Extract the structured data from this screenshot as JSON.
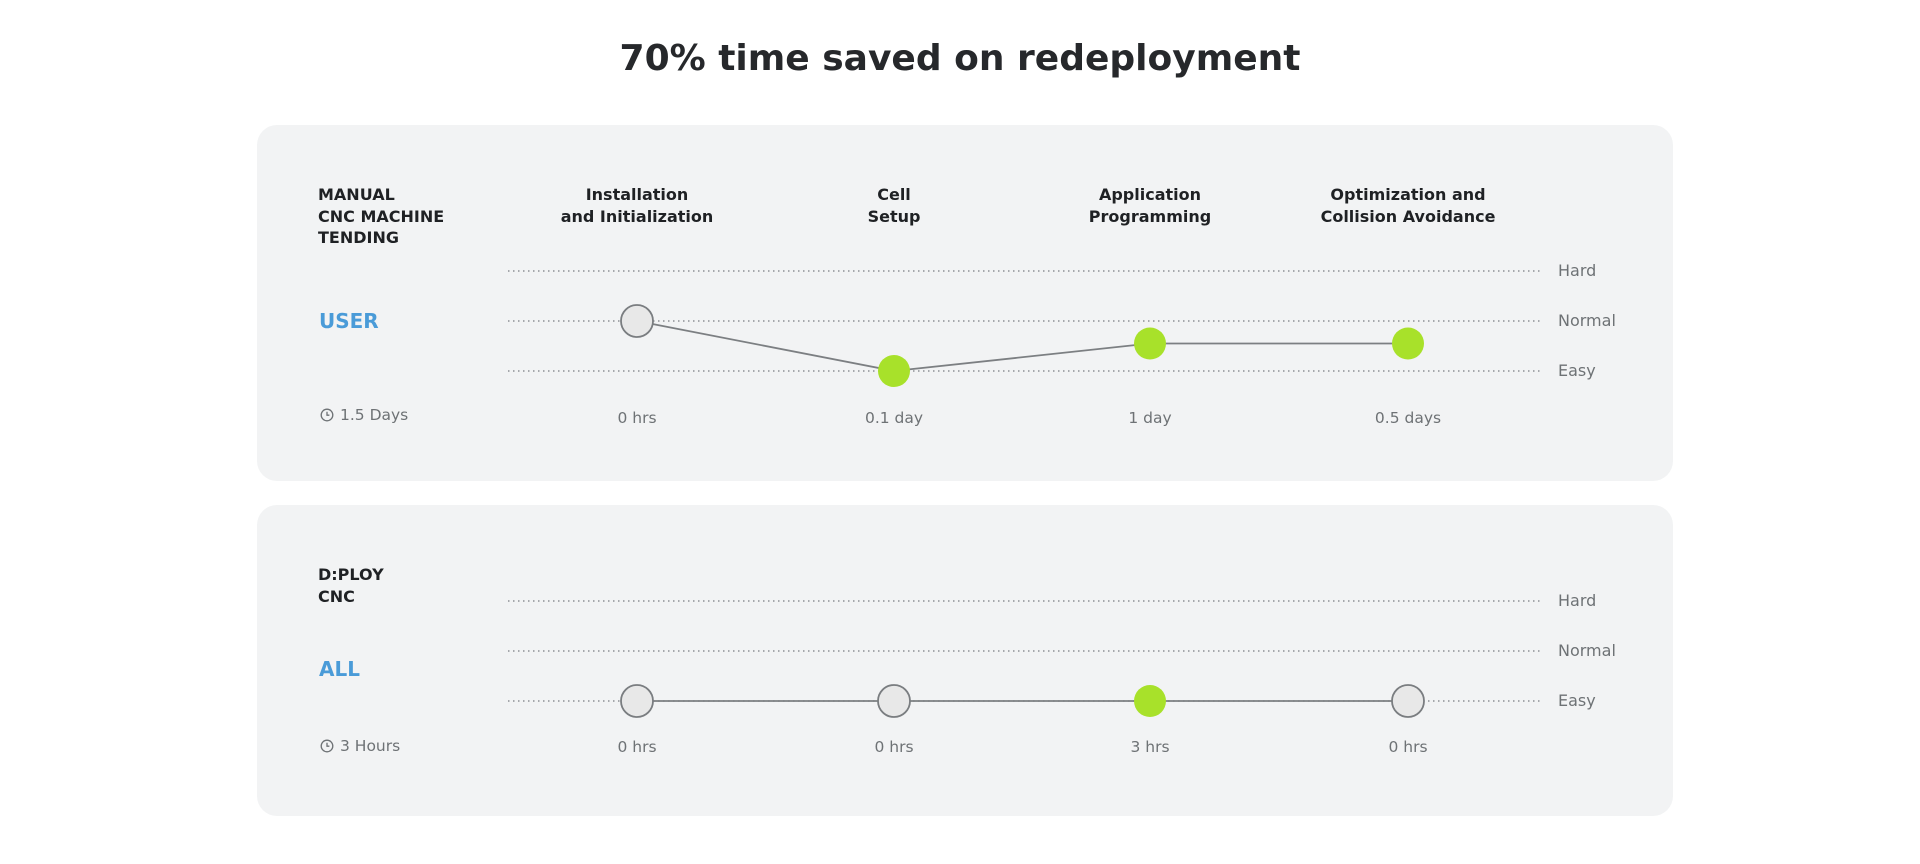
{
  "headline": "70% time saved on redeployment",
  "difficulty_levels": [
    "Hard",
    "Normal",
    "Easy"
  ],
  "stages": [
    "Installation\nand Initialization",
    "Cell\nSetup",
    "Application\nProgramming",
    "Optimization and\nCollision Avoidance"
  ],
  "colors": {
    "highlight": "#a8e12a",
    "neutral_fill": "#e8e8e8",
    "neutral_stroke": "#7a7d80",
    "line": "#7c7f82",
    "accent_text": "#4a9bd8"
  },
  "panels": [
    {
      "title": "MANUAL\nCNC MACHINE\nTENDING",
      "role": "USER",
      "total": "1.5 Days"
    },
    {
      "title": "D:PLOY\nCNC",
      "role": "ALL",
      "total": "3 Hours"
    }
  ],
  "chart_data": [
    {
      "type": "line",
      "title": "MANUAL\nCNC MACHINE\nTENDING",
      "categories": [
        "Installation\nand Initialization",
        "Cell\nSetup",
        "Application\nProgramming",
        "Optimization and\nCollision Avoidance"
      ],
      "y_categories": [
        "Easy",
        "Normal",
        "Hard"
      ],
      "series": [
        {
          "name": "USER",
          "difficulty": [
            "Normal",
            "Easy",
            "Between Easy and Normal",
            "Between Easy and Normal"
          ],
          "difficulty_value": [
            1.0,
            0.0,
            0.55,
            0.55
          ],
          "time_labels": [
            "0 hrs",
            "0.1 day",
            "1 day",
            "0.5 days"
          ],
          "highlighted": [
            false,
            true,
            true,
            true
          ]
        }
      ],
      "total_time": "1.5 Days"
    },
    {
      "type": "line",
      "title": "D:PLOY\nCNC",
      "categories": [
        "Installation\nand Initialization",
        "Cell\nSetup",
        "Application\nProgramming",
        "Optimization and\nCollision Avoidance"
      ],
      "y_categories": [
        "Easy",
        "Normal",
        "Hard"
      ],
      "series": [
        {
          "name": "ALL",
          "difficulty": [
            "Easy",
            "Easy",
            "Easy",
            "Easy"
          ],
          "difficulty_value": [
            0.0,
            0.0,
            0.0,
            0.0
          ],
          "time_labels": [
            "0 hrs",
            "0 hrs",
            "3 hrs",
            "0 hrs"
          ],
          "highlighted": [
            false,
            false,
            true,
            false
          ]
        }
      ],
      "total_time": "3 Hours"
    }
  ]
}
